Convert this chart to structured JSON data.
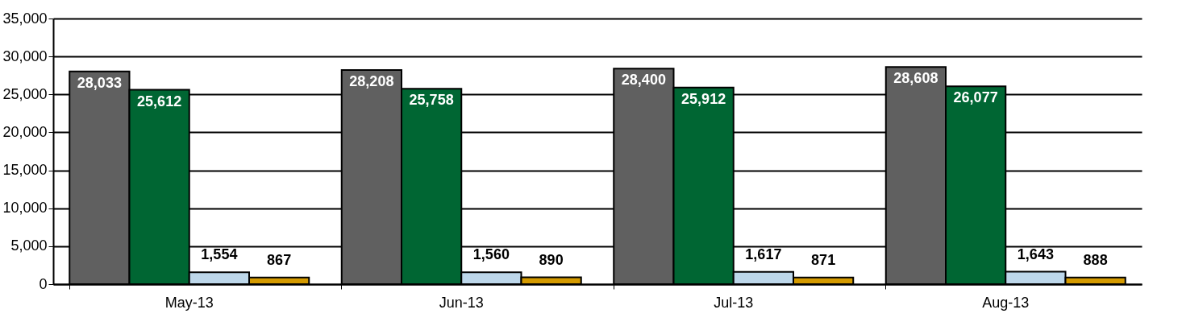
{
  "chart_data": {
    "type": "bar",
    "categories": [
      "May-13",
      "Jun-13",
      "Jul-13",
      "Aug-13"
    ],
    "series": [
      {
        "color": "#606060",
        "values": [
          28033,
          28208,
          28400,
          28608
        ],
        "value_labels": [
          "28,033",
          "28,208",
          "28,400",
          "28,608"
        ]
      },
      {
        "color": "#006633",
        "values": [
          25612,
          25758,
          25912,
          26077
        ],
        "value_labels": [
          "25,612",
          "25,758",
          "25,912",
          "26,077"
        ]
      },
      {
        "color": "#bdd7ea",
        "values": [
          1554,
          1560,
          1617,
          1643
        ],
        "value_labels": [
          "1,554",
          "1,560",
          "1,617",
          "1,643"
        ]
      },
      {
        "color": "#d49a00",
        "values": [
          867,
          890,
          871,
          888
        ],
        "value_labels": [
          "867",
          "890",
          "871",
          "888"
        ]
      }
    ],
    "ylim": [
      0,
      35000
    ],
    "yticks": [
      0,
      {
        "value": 5000,
        "label": "5,000"
      },
      {
        "value": 10000,
        "label": "10,000"
      },
      {
        "value": 15000,
        "label": "15,000"
      },
      {
        "value": 20000,
        "label": "20,000"
      },
      {
        "value": 25000,
        "label": "25,000"
      },
      {
        "value": 30000,
        "label": "30,000"
      },
      {
        "value": 35000,
        "label": "35,000"
      }
    ],
    "grid": "y"
  }
}
